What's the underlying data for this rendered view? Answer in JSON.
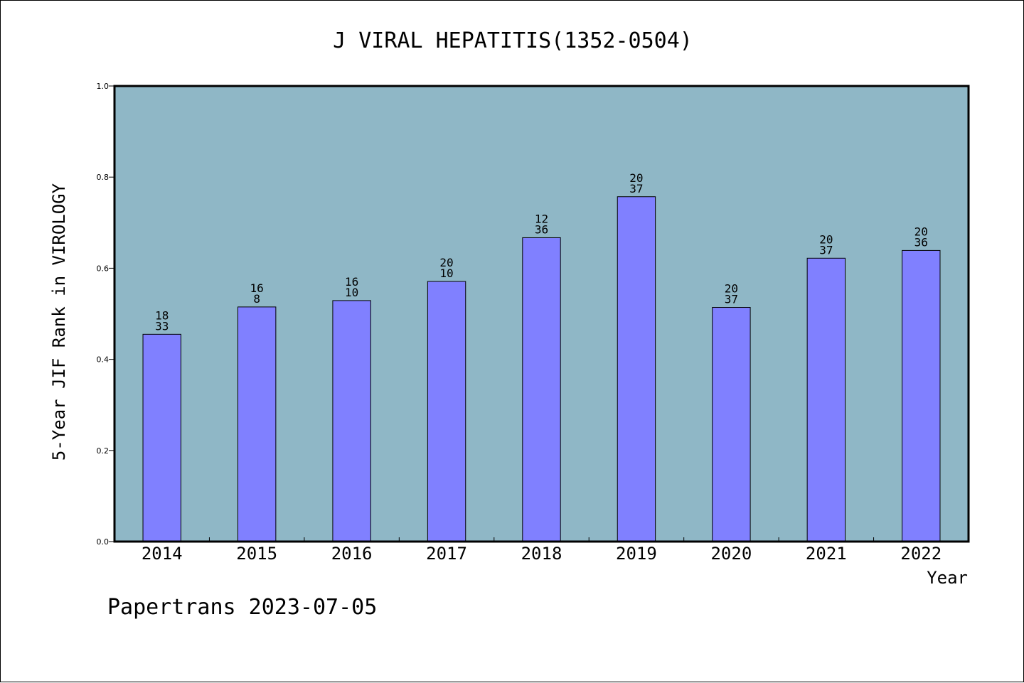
{
  "chart_data": {
    "type": "bar",
    "title": "J VIRAL HEPATITIS(1352-0504)",
    "xlabel": "Year",
    "ylabel": "5-Year JIF Rank in VIROLOGY",
    "ylim": [
      0,
      1.0
    ],
    "yticks": [
      "0.0",
      "0.2",
      "0.4",
      "0.6",
      "0.8",
      "1.0"
    ],
    "categories": [
      "2014",
      "2015",
      "2016",
      "2017",
      "2018",
      "2019",
      "2020",
      "2021",
      "2022"
    ],
    "values": [
      0.455,
      0.515,
      0.529,
      0.571,
      0.667,
      0.757,
      0.514,
      0.622,
      0.639
    ],
    "labels_top": [
      "18",
      "16",
      "16",
      "20",
      "12",
      "20",
      "20",
      "20",
      "20"
    ],
    "labels_bottom": [
      "33",
      "8",
      "10",
      "10",
      "36",
      "37",
      "37",
      "37",
      "36"
    ],
    "grid": false,
    "legend": "none"
  },
  "footer": "Papertrans 2023-07-05",
  "colors": {
    "plot_background": "#8fb7c6",
    "bar_fill": "#8080ff",
    "bar_stroke": "#000000",
    "text": "#000000"
  }
}
